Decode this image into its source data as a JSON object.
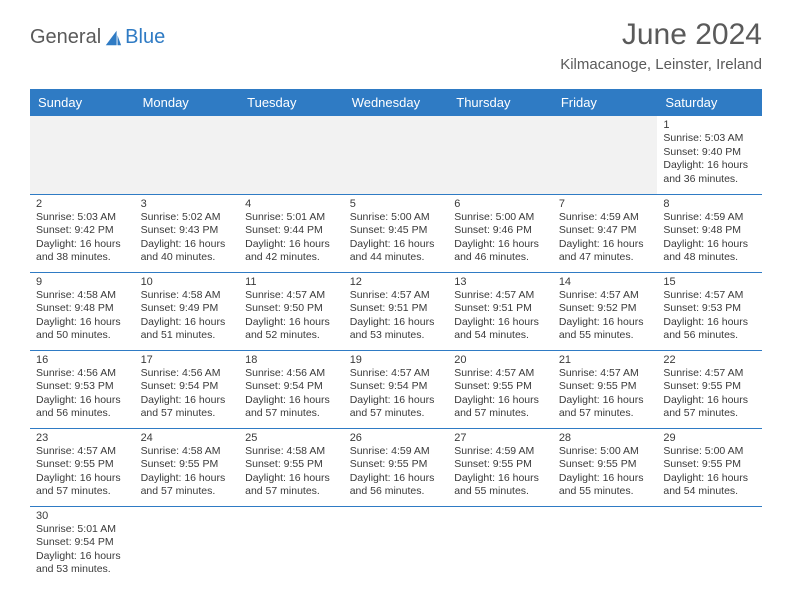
{
  "logo": {
    "text1": "General",
    "text2": "Blue"
  },
  "title": "June 2024",
  "location": "Kilmacanoge, Leinster, Ireland",
  "colors": {
    "header_bg": "#2f7bc4",
    "text": "#5a5a5a",
    "cell_text": "#3a3a3a",
    "border": "#2f7bc4"
  },
  "day_headers": [
    "Sunday",
    "Monday",
    "Tuesday",
    "Wednesday",
    "Thursday",
    "Friday",
    "Saturday"
  ],
  "weeks": [
    [
      null,
      null,
      null,
      null,
      null,
      null,
      {
        "n": "1",
        "sr": "Sunrise: 5:03 AM",
        "ss": "Sunset: 9:40 PM",
        "d1": "Daylight: 16 hours",
        "d2": "and 36 minutes."
      }
    ],
    [
      {
        "n": "2",
        "sr": "Sunrise: 5:03 AM",
        "ss": "Sunset: 9:42 PM",
        "d1": "Daylight: 16 hours",
        "d2": "and 38 minutes."
      },
      {
        "n": "3",
        "sr": "Sunrise: 5:02 AM",
        "ss": "Sunset: 9:43 PM",
        "d1": "Daylight: 16 hours",
        "d2": "and 40 minutes."
      },
      {
        "n": "4",
        "sr": "Sunrise: 5:01 AM",
        "ss": "Sunset: 9:44 PM",
        "d1": "Daylight: 16 hours",
        "d2": "and 42 minutes."
      },
      {
        "n": "5",
        "sr": "Sunrise: 5:00 AM",
        "ss": "Sunset: 9:45 PM",
        "d1": "Daylight: 16 hours",
        "d2": "and 44 minutes."
      },
      {
        "n": "6",
        "sr": "Sunrise: 5:00 AM",
        "ss": "Sunset: 9:46 PM",
        "d1": "Daylight: 16 hours",
        "d2": "and 46 minutes."
      },
      {
        "n": "7",
        "sr": "Sunrise: 4:59 AM",
        "ss": "Sunset: 9:47 PM",
        "d1": "Daylight: 16 hours",
        "d2": "and 47 minutes."
      },
      {
        "n": "8",
        "sr": "Sunrise: 4:59 AM",
        "ss": "Sunset: 9:48 PM",
        "d1": "Daylight: 16 hours",
        "d2": "and 48 minutes."
      }
    ],
    [
      {
        "n": "9",
        "sr": "Sunrise: 4:58 AM",
        "ss": "Sunset: 9:48 PM",
        "d1": "Daylight: 16 hours",
        "d2": "and 50 minutes."
      },
      {
        "n": "10",
        "sr": "Sunrise: 4:58 AM",
        "ss": "Sunset: 9:49 PM",
        "d1": "Daylight: 16 hours",
        "d2": "and 51 minutes."
      },
      {
        "n": "11",
        "sr": "Sunrise: 4:57 AM",
        "ss": "Sunset: 9:50 PM",
        "d1": "Daylight: 16 hours",
        "d2": "and 52 minutes."
      },
      {
        "n": "12",
        "sr": "Sunrise: 4:57 AM",
        "ss": "Sunset: 9:51 PM",
        "d1": "Daylight: 16 hours",
        "d2": "and 53 minutes."
      },
      {
        "n": "13",
        "sr": "Sunrise: 4:57 AM",
        "ss": "Sunset: 9:51 PM",
        "d1": "Daylight: 16 hours",
        "d2": "and 54 minutes."
      },
      {
        "n": "14",
        "sr": "Sunrise: 4:57 AM",
        "ss": "Sunset: 9:52 PM",
        "d1": "Daylight: 16 hours",
        "d2": "and 55 minutes."
      },
      {
        "n": "15",
        "sr": "Sunrise: 4:57 AM",
        "ss": "Sunset: 9:53 PM",
        "d1": "Daylight: 16 hours",
        "d2": "and 56 minutes."
      }
    ],
    [
      {
        "n": "16",
        "sr": "Sunrise: 4:56 AM",
        "ss": "Sunset: 9:53 PM",
        "d1": "Daylight: 16 hours",
        "d2": "and 56 minutes."
      },
      {
        "n": "17",
        "sr": "Sunrise: 4:56 AM",
        "ss": "Sunset: 9:54 PM",
        "d1": "Daylight: 16 hours",
        "d2": "and 57 minutes."
      },
      {
        "n": "18",
        "sr": "Sunrise: 4:56 AM",
        "ss": "Sunset: 9:54 PM",
        "d1": "Daylight: 16 hours",
        "d2": "and 57 minutes."
      },
      {
        "n": "19",
        "sr": "Sunrise: 4:57 AM",
        "ss": "Sunset: 9:54 PM",
        "d1": "Daylight: 16 hours",
        "d2": "and 57 minutes."
      },
      {
        "n": "20",
        "sr": "Sunrise: 4:57 AM",
        "ss": "Sunset: 9:55 PM",
        "d1": "Daylight: 16 hours",
        "d2": "and 57 minutes."
      },
      {
        "n": "21",
        "sr": "Sunrise: 4:57 AM",
        "ss": "Sunset: 9:55 PM",
        "d1": "Daylight: 16 hours",
        "d2": "and 57 minutes."
      },
      {
        "n": "22",
        "sr": "Sunrise: 4:57 AM",
        "ss": "Sunset: 9:55 PM",
        "d1": "Daylight: 16 hours",
        "d2": "and 57 minutes."
      }
    ],
    [
      {
        "n": "23",
        "sr": "Sunrise: 4:57 AM",
        "ss": "Sunset: 9:55 PM",
        "d1": "Daylight: 16 hours",
        "d2": "and 57 minutes."
      },
      {
        "n": "24",
        "sr": "Sunrise: 4:58 AM",
        "ss": "Sunset: 9:55 PM",
        "d1": "Daylight: 16 hours",
        "d2": "and 57 minutes."
      },
      {
        "n": "25",
        "sr": "Sunrise: 4:58 AM",
        "ss": "Sunset: 9:55 PM",
        "d1": "Daylight: 16 hours",
        "d2": "and 57 minutes."
      },
      {
        "n": "26",
        "sr": "Sunrise: 4:59 AM",
        "ss": "Sunset: 9:55 PM",
        "d1": "Daylight: 16 hours",
        "d2": "and 56 minutes."
      },
      {
        "n": "27",
        "sr": "Sunrise: 4:59 AM",
        "ss": "Sunset: 9:55 PM",
        "d1": "Daylight: 16 hours",
        "d2": "and 55 minutes."
      },
      {
        "n": "28",
        "sr": "Sunrise: 5:00 AM",
        "ss": "Sunset: 9:55 PM",
        "d1": "Daylight: 16 hours",
        "d2": "and 55 minutes."
      },
      {
        "n": "29",
        "sr": "Sunrise: 5:00 AM",
        "ss": "Sunset: 9:55 PM",
        "d1": "Daylight: 16 hours",
        "d2": "and 54 minutes."
      }
    ],
    [
      {
        "n": "30",
        "sr": "Sunrise: 5:01 AM",
        "ss": "Sunset: 9:54 PM",
        "d1": "Daylight: 16 hours",
        "d2": "and 53 minutes."
      },
      null,
      null,
      null,
      null,
      null,
      null
    ]
  ]
}
